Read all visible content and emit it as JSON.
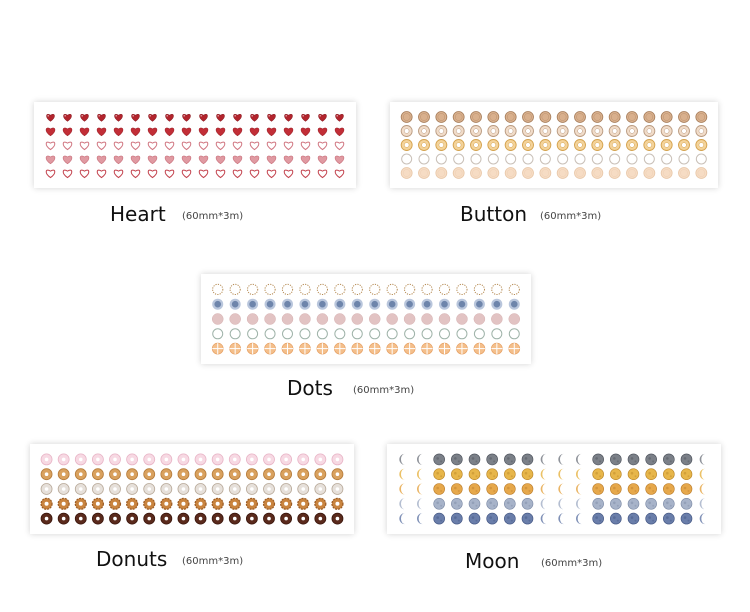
{
  "products": [
    {
      "id": "heart",
      "name": "Heart",
      "spec": "(60mm*3m)",
      "motif": "heart",
      "columns": 18,
      "rows": [
        {
          "style": "pixel-heart",
          "fill": "#b3242d",
          "stroke": "#8c1b22"
        },
        {
          "style": "heart",
          "fill": "#c22e37",
          "stroke": "#a0222a"
        },
        {
          "style": "heart-outline",
          "fill": "#ffffff",
          "stroke": "#d07580"
        },
        {
          "style": "heart",
          "fill": "#e09aa2",
          "stroke": "#c86e79"
        },
        {
          "style": "heart-outline",
          "fill": "#ffffff",
          "stroke": "#c2414c"
        }
      ]
    },
    {
      "id": "button",
      "name": "Button",
      "spec": "(60mm*3m)",
      "motif": "button",
      "columns": 18,
      "rows": [
        {
          "style": "button",
          "fill": "#d9b08d",
          "stroke": "#a67d5a"
        },
        {
          "style": "button-ring",
          "fill": "#f1dcc9",
          "stroke": "#b99a80"
        },
        {
          "style": "button-ring",
          "fill": "#f4d39a",
          "stroke": "#d4a24d"
        },
        {
          "style": "ring",
          "fill": "#ffffff",
          "stroke": "#c9c0b8"
        },
        {
          "style": "button",
          "fill": "#f6dcc4",
          "stroke": "#e8c7a8"
        }
      ]
    },
    {
      "id": "dots",
      "name": "Dots",
      "spec": "(60mm*3m)",
      "motif": "dot",
      "columns": 18,
      "rows": [
        {
          "style": "dotted-ring",
          "fill": "#ffffff",
          "stroke": "#b58a52"
        },
        {
          "style": "bullseye",
          "fill": "#6e85ab",
          "stroke": "#b9c6dc"
        },
        {
          "style": "dot",
          "fill": "#e2c3c3",
          "stroke": "#d7b2b2"
        },
        {
          "style": "ring",
          "fill": "#ffffff",
          "stroke": "#9fb3a9"
        },
        {
          "style": "plaid",
          "fill": "#f4bf8b",
          "stroke": "#e59d5f"
        }
      ]
    },
    {
      "id": "donuts",
      "name": "Donuts",
      "spec": "(60mm*3m)",
      "motif": "donut",
      "columns": 18,
      "rows": [
        {
          "style": "donut",
          "fill": "#f7d9e3",
          "stroke": "#e8b4c6"
        },
        {
          "style": "donut",
          "fill": "#d9a15e",
          "stroke": "#b57b3a"
        },
        {
          "style": "donut",
          "fill": "#e6e0da",
          "stroke": "#b8a999"
        },
        {
          "style": "donut-cruller",
          "fill": "#c9843f",
          "stroke": "#9a5a22"
        },
        {
          "style": "donut",
          "fill": "#5a2a1c",
          "stroke": "#3a160c"
        }
      ]
    },
    {
      "id": "moon",
      "name": "Moon",
      "spec": "(60mm*3m)",
      "motif": "moon",
      "columns": 18,
      "rows": [
        {
          "style": "moon",
          "fill": "#7b8088",
          "stroke": "#4d525b"
        },
        {
          "style": "moon",
          "fill": "#e7b64a",
          "stroke": "#b98528"
        },
        {
          "style": "moon",
          "fill": "#e6a84b",
          "stroke": "#bd7e2c"
        },
        {
          "style": "moon",
          "fill": "#a7b3c9",
          "stroke": "#7c8aa5"
        },
        {
          "style": "moon",
          "fill": "#6a7eaa",
          "stroke": "#435683"
        }
      ]
    }
  ]
}
